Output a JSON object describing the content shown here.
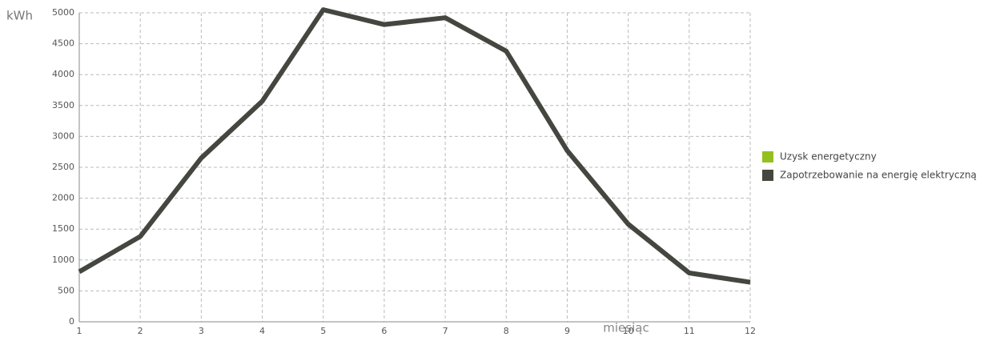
{
  "chart_data": {
    "type": "line",
    "y_label": "kWh",
    "x_label": "miesiąc",
    "x": [
      1,
      2,
      3,
      4,
      5,
      6,
      7,
      8,
      9,
      10,
      11,
      12
    ],
    "series": [
      {
        "name": "Uzysk energetyczny",
        "color": "#93c01f",
        "values": [
          null,
          null,
          null,
          null,
          null,
          null,
          null,
          null,
          null,
          null,
          null,
          null
        ]
      },
      {
        "name": "Zapotrzebowanie na energię elektryczną",
        "color": "#444640",
        "values": [
          810,
          1380,
          2650,
          3570,
          5050,
          4810,
          4920,
          4380,
          2770,
          1580,
          790,
          640
        ]
      }
    ],
    "xlim": [
      1,
      12
    ],
    "xticks": [
      1,
      2,
      3,
      4,
      5,
      6,
      7,
      8,
      9,
      10,
      11,
      12
    ],
    "ylim": [
      0,
      5000
    ],
    "yticks": [
      0,
      500,
      1000,
      1500,
      2000,
      2500,
      3000,
      3500,
      4000,
      4500,
      5000
    ],
    "grid": true
  }
}
